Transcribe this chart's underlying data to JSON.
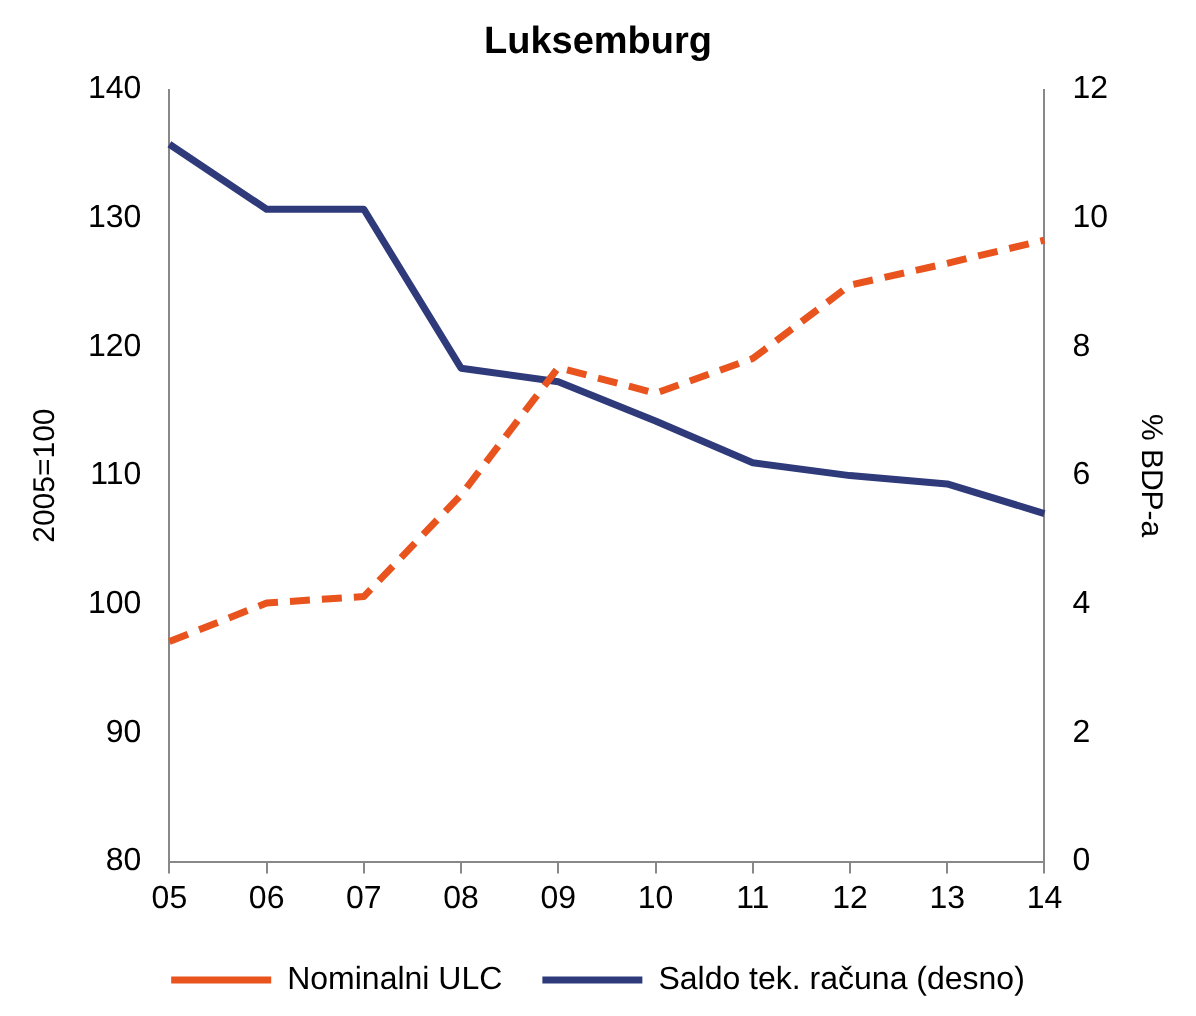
{
  "chart_data": {
    "type": "line",
    "title": "Luksemburg",
    "ylabel": "2005=100",
    "y2label": "% BDP-a",
    "categories": [
      "05",
      "06",
      "07",
      "08",
      "09",
      "10",
      "11",
      "12",
      "13",
      "14"
    ],
    "series": [
      {
        "name": "Nominalni ULC",
        "color": "#e8531e",
        "line_style": "dashed",
        "values": [
          97.1,
          100.1,
          100.6,
          108.5,
          118.4,
          116.4,
          119.1,
          124.8,
          126.5,
          128.3
        ]
      },
      {
        "name": "Saldo tek. računa (desno)",
        "color": "#2e3a7a",
        "line_style": "solid",
        "axis": "y2",
        "values": [
          11.15,
          10.14,
          10.14,
          7.67,
          7.46,
          6.85,
          6.2,
          6.0,
          5.87,
          5.41
        ]
      }
    ],
    "ylim": [
      80,
      140
    ],
    "yticks": [
      80,
      90,
      100,
      110,
      120,
      130,
      140
    ],
    "y2lim": [
      0,
      12
    ],
    "y2ticks": [
      0,
      2,
      4,
      6,
      8,
      10,
      12
    ],
    "grid": false,
    "legend": "bottom",
    "marker": "none"
  }
}
